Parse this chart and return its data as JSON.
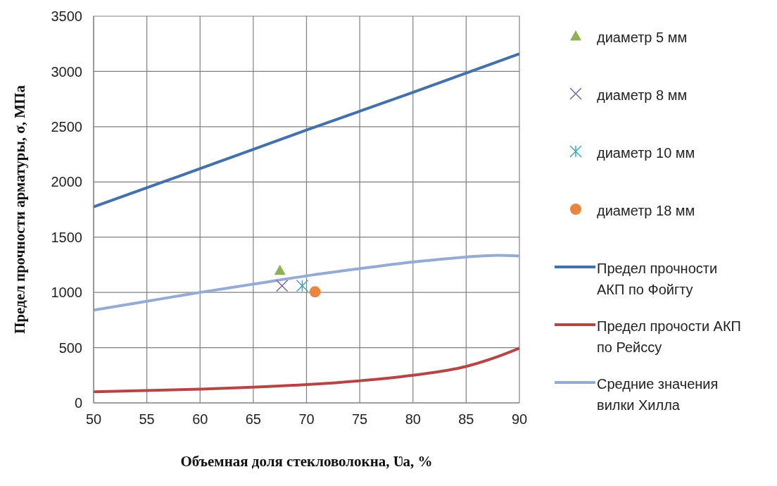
{
  "chart_data": {
    "type": "line",
    "xlabel": "Объемная доля стекловолокна, Ʋa, %",
    "ylabel": "Предел прочности арматуры, σ, МПа",
    "xlim": [
      50,
      90
    ],
    "ylim": [
      0,
      3500
    ],
    "xticks": [
      50,
      55,
      60,
      65,
      70,
      75,
      80,
      85,
      90
    ],
    "yticks": [
      0,
      500,
      1000,
      1500,
      2000,
      2500,
      3000,
      3500
    ],
    "grid": true,
    "legend": "right",
    "series": [
      {
        "name": "диаметр 5 мм",
        "type": "scatter",
        "marker": "triangle",
        "color": "#8eb152",
        "x": [
          67.5
        ],
        "values": [
          1200
        ]
      },
      {
        "name": "диаметр 8 мм",
        "type": "scatter",
        "marker": "cross",
        "color": "#7b62a2",
        "x": [
          67.7
        ],
        "values": [
          1060
        ]
      },
      {
        "name": "диаметр 10 мм",
        "type": "scatter",
        "color": "#3fa6b9",
        "x": [
          69.6
        ],
        "values": [
          1060
        ]
      },
      {
        "name": "диаметр 18 мм",
        "type": "scatter",
        "marker": "circle",
        "color": "#e8853f",
        "x": [
          70.8
        ],
        "values": [
          1005
        ]
      },
      {
        "name": "Предел прочности АКП по Фойгту",
        "color": "#4470ab",
        "x": [
          50,
          60,
          70,
          80,
          90
        ],
        "values": [
          1775,
          2120,
          2470,
          2810,
          3160
        ]
      },
      {
        "name": "Предел прочости АКП по Рейссу",
        "color": "#b44745",
        "x": [
          50,
          60,
          70,
          75,
          80,
          85,
          88,
          90
        ],
        "values": [
          100,
          125,
          165,
          200,
          250,
          330,
          420,
          495
        ]
      },
      {
        "name": "Средние значения вилки Хилла",
        "color": "#94abd4",
        "x": [
          50,
          55,
          60,
          65,
          70,
          75,
          80,
          85,
          88,
          90
        ],
        "values": [
          840,
          920,
          1000,
          1075,
          1150,
          1215,
          1275,
          1320,
          1335,
          1330
        ]
      }
    ]
  }
}
